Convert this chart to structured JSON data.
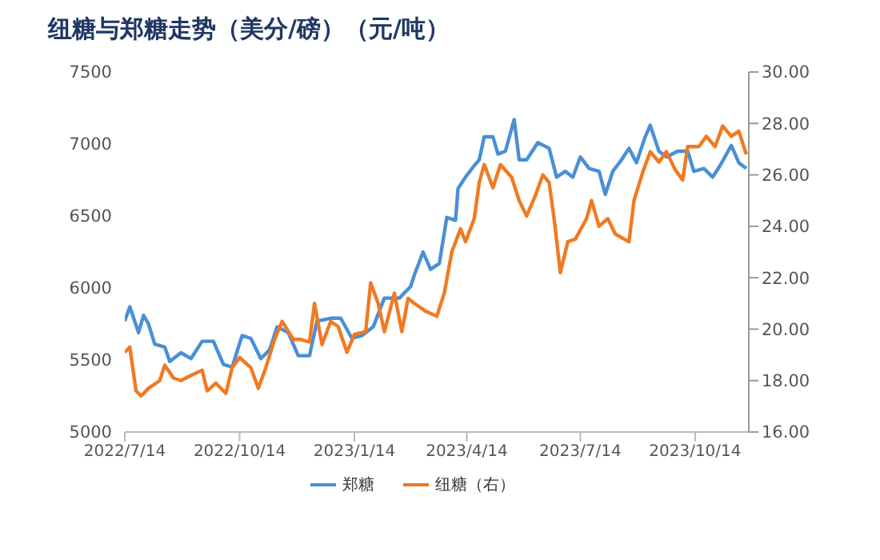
{
  "chart_data": {
    "type": "line",
    "title": "纽糖与郑糖走势（美分/磅）（元/吨）",
    "xlim": [
      "2022-07-14",
      "2023-11-26"
    ],
    "xticks": [
      {
        "value": "2022-07-14",
        "label": "2022/7/14"
      },
      {
        "value": "2022-10-14",
        "label": "2022/10/14"
      },
      {
        "value": "2023-01-14",
        "label": "2023/1/14"
      },
      {
        "value": "2023-04-14",
        "label": "2023/4/14"
      },
      {
        "value": "2023-07-14",
        "label": "2023/7/14"
      },
      {
        "value": "2023-10-14",
        "label": "2023/10/14"
      }
    ],
    "ylim": [
      5000,
      7500
    ],
    "yticks": [
      5000,
      5500,
      6000,
      6500,
      7000,
      7500
    ],
    "y2lim": [
      16,
      30
    ],
    "y2ticks": [
      {
        "value": 16,
        "label": "16.00"
      },
      {
        "value": 18,
        "label": "18.00"
      },
      {
        "value": 20,
        "label": "20.00"
      },
      {
        "value": 22,
        "label": "22.00"
      },
      {
        "value": 24,
        "label": "24.00"
      },
      {
        "value": 26,
        "label": "26.00"
      },
      {
        "value": 28,
        "label": "28.00"
      },
      {
        "value": 30,
        "label": "30.00"
      }
    ],
    "legend": "bottom",
    "marker": "none",
    "line_style": "solid",
    "series": [
      {
        "name": "郑糖",
        "color": "#4a8fd6",
        "x": [
          "2022-07-14",
          "2022-07-18",
          "2022-07-25",
          "2022-07-29",
          "2022-08-02",
          "2022-08-07",
          "2022-08-15",
          "2022-08-19",
          "2022-08-28",
          "2022-09-05",
          "2022-09-14",
          "2022-09-23",
          "2022-10-01",
          "2022-10-08",
          "2022-10-16",
          "2022-10-23",
          "2022-10-31",
          "2022-11-07",
          "2022-11-13",
          "2022-11-22",
          "2022-11-30",
          "2022-12-09",
          "2022-12-15",
          "2022-12-26",
          "2023-01-03",
          "2023-01-12",
          "2023-01-20",
          "2023-01-29",
          "2023-02-07",
          "2023-02-19",
          "2023-02-28",
          "2023-03-03",
          "2023-03-10",
          "2023-03-16",
          "2023-03-23",
          "2023-03-29",
          "2023-04-05",
          "2023-04-07",
          "2023-04-13",
          "2023-04-20",
          "2023-04-24",
          "2023-04-28",
          "2023-05-05",
          "2023-05-09",
          "2023-05-15",
          "2023-05-22",
          "2023-05-26",
          "2023-06-01",
          "2023-06-10",
          "2023-06-19",
          "2023-06-25",
          "2023-07-02",
          "2023-07-08",
          "2023-07-14",
          "2023-07-21",
          "2023-07-29",
          "2023-08-03",
          "2023-08-09",
          "2023-08-16",
          "2023-08-22",
          "2023-08-28",
          "2023-09-04",
          "2023-09-08",
          "2023-09-15",
          "2023-09-21",
          "2023-09-30",
          "2023-10-08",
          "2023-10-13",
          "2023-10-21",
          "2023-10-28",
          "2023-11-03",
          "2023-11-12",
          "2023-11-18",
          "2023-11-24"
        ],
        "values": [
          5770,
          5870,
          5690,
          5810,
          5750,
          5610,
          5590,
          5490,
          5550,
          5510,
          5630,
          5630,
          5470,
          5450,
          5670,
          5650,
          5510,
          5570,
          5730,
          5690,
          5530,
          5530,
          5770,
          5790,
          5790,
          5650,
          5670,
          5730,
          5930,
          5930,
          6010,
          6090,
          6250,
          6130,
          6170,
          6490,
          6470,
          6690,
          6770,
          6850,
          6890,
          7050,
          7050,
          6930,
          6950,
          7170,
          6890,
          6890,
          7010,
          6970,
          6770,
          6810,
          6770,
          6910,
          6830,
          6810,
          6650,
          6810,
          6890,
          6970,
          6870,
          7050,
          7130,
          6950,
          6910,
          6950,
          6950,
          6810,
          6830,
          6770,
          6850,
          6990,
          6870,
          6830
        ]
      },
      {
        "name": "纽糖（右）",
        "color": "#f07a22",
        "axis": "y2",
        "x": [
          "2022-07-14",
          "2022-07-18",
          "2022-07-23",
          "2022-07-27",
          "2022-08-02",
          "2022-08-11",
          "2022-08-15",
          "2022-08-22",
          "2022-08-28",
          "2022-09-05",
          "2022-09-14",
          "2022-09-18",
          "2022-09-25",
          "2022-10-03",
          "2022-10-08",
          "2022-10-14",
          "2022-10-23",
          "2022-10-29",
          "2022-11-04",
          "2022-11-11",
          "2022-11-17",
          "2022-11-26",
          "2022-12-02",
          "2022-12-09",
          "2022-12-13",
          "2022-12-19",
          "2022-12-26",
          "2023-01-01",
          "2023-01-08",
          "2023-01-14",
          "2023-01-23",
          "2023-01-27",
          "2023-02-02",
          "2023-02-07",
          "2023-02-15",
          "2023-02-21",
          "2023-02-26",
          "2023-03-03",
          "2023-03-12",
          "2023-03-21",
          "2023-03-27",
          "2023-04-02",
          "2023-04-09",
          "2023-04-13",
          "2023-04-20",
          "2023-04-24",
          "2023-04-28",
          "2023-05-05",
          "2023-05-11",
          "2023-05-20",
          "2023-05-26",
          "2023-06-01",
          "2023-06-08",
          "2023-06-14",
          "2023-06-19",
          "2023-06-23",
          "2023-06-28",
          "2023-07-04",
          "2023-07-10",
          "2023-07-19",
          "2023-07-23",
          "2023-07-29",
          "2023-08-05",
          "2023-08-11",
          "2023-08-22",
          "2023-08-26",
          "2023-09-02",
          "2023-09-08",
          "2023-09-15",
          "2023-09-21",
          "2023-09-28",
          "2023-10-04",
          "2023-10-08",
          "2023-10-17",
          "2023-10-23",
          "2023-10-30",
          "2023-11-05",
          "2023-11-12",
          "2023-11-18",
          "2023-11-24"
        ],
        "values": [
          19.1,
          19.3,
          17.6,
          17.4,
          17.7,
          18.0,
          18.6,
          18.1,
          18.0,
          18.2,
          18.4,
          17.6,
          17.9,
          17.5,
          18.5,
          18.9,
          18.5,
          17.7,
          18.5,
          19.6,
          20.3,
          19.6,
          19.6,
          19.5,
          21.0,
          19.4,
          20.3,
          20.1,
          19.1,
          19.8,
          19.9,
          21.8,
          21.0,
          19.9,
          21.4,
          19.9,
          21.2,
          21.0,
          20.7,
          20.5,
          21.4,
          23.0,
          23.9,
          23.4,
          24.3,
          25.7,
          26.4,
          25.5,
          26.4,
          25.9,
          25.0,
          24.4,
          25.2,
          26.0,
          25.7,
          24.3,
          22.2,
          23.4,
          23.5,
          24.3,
          25.0,
          24.0,
          24.3,
          23.7,
          23.4,
          25.0,
          26.1,
          26.9,
          26.5,
          26.9,
          26.2,
          25.8,
          27.1,
          27.1,
          27.5,
          27.1,
          27.9,
          27.5,
          27.7,
          26.8
        ]
      }
    ]
  }
}
